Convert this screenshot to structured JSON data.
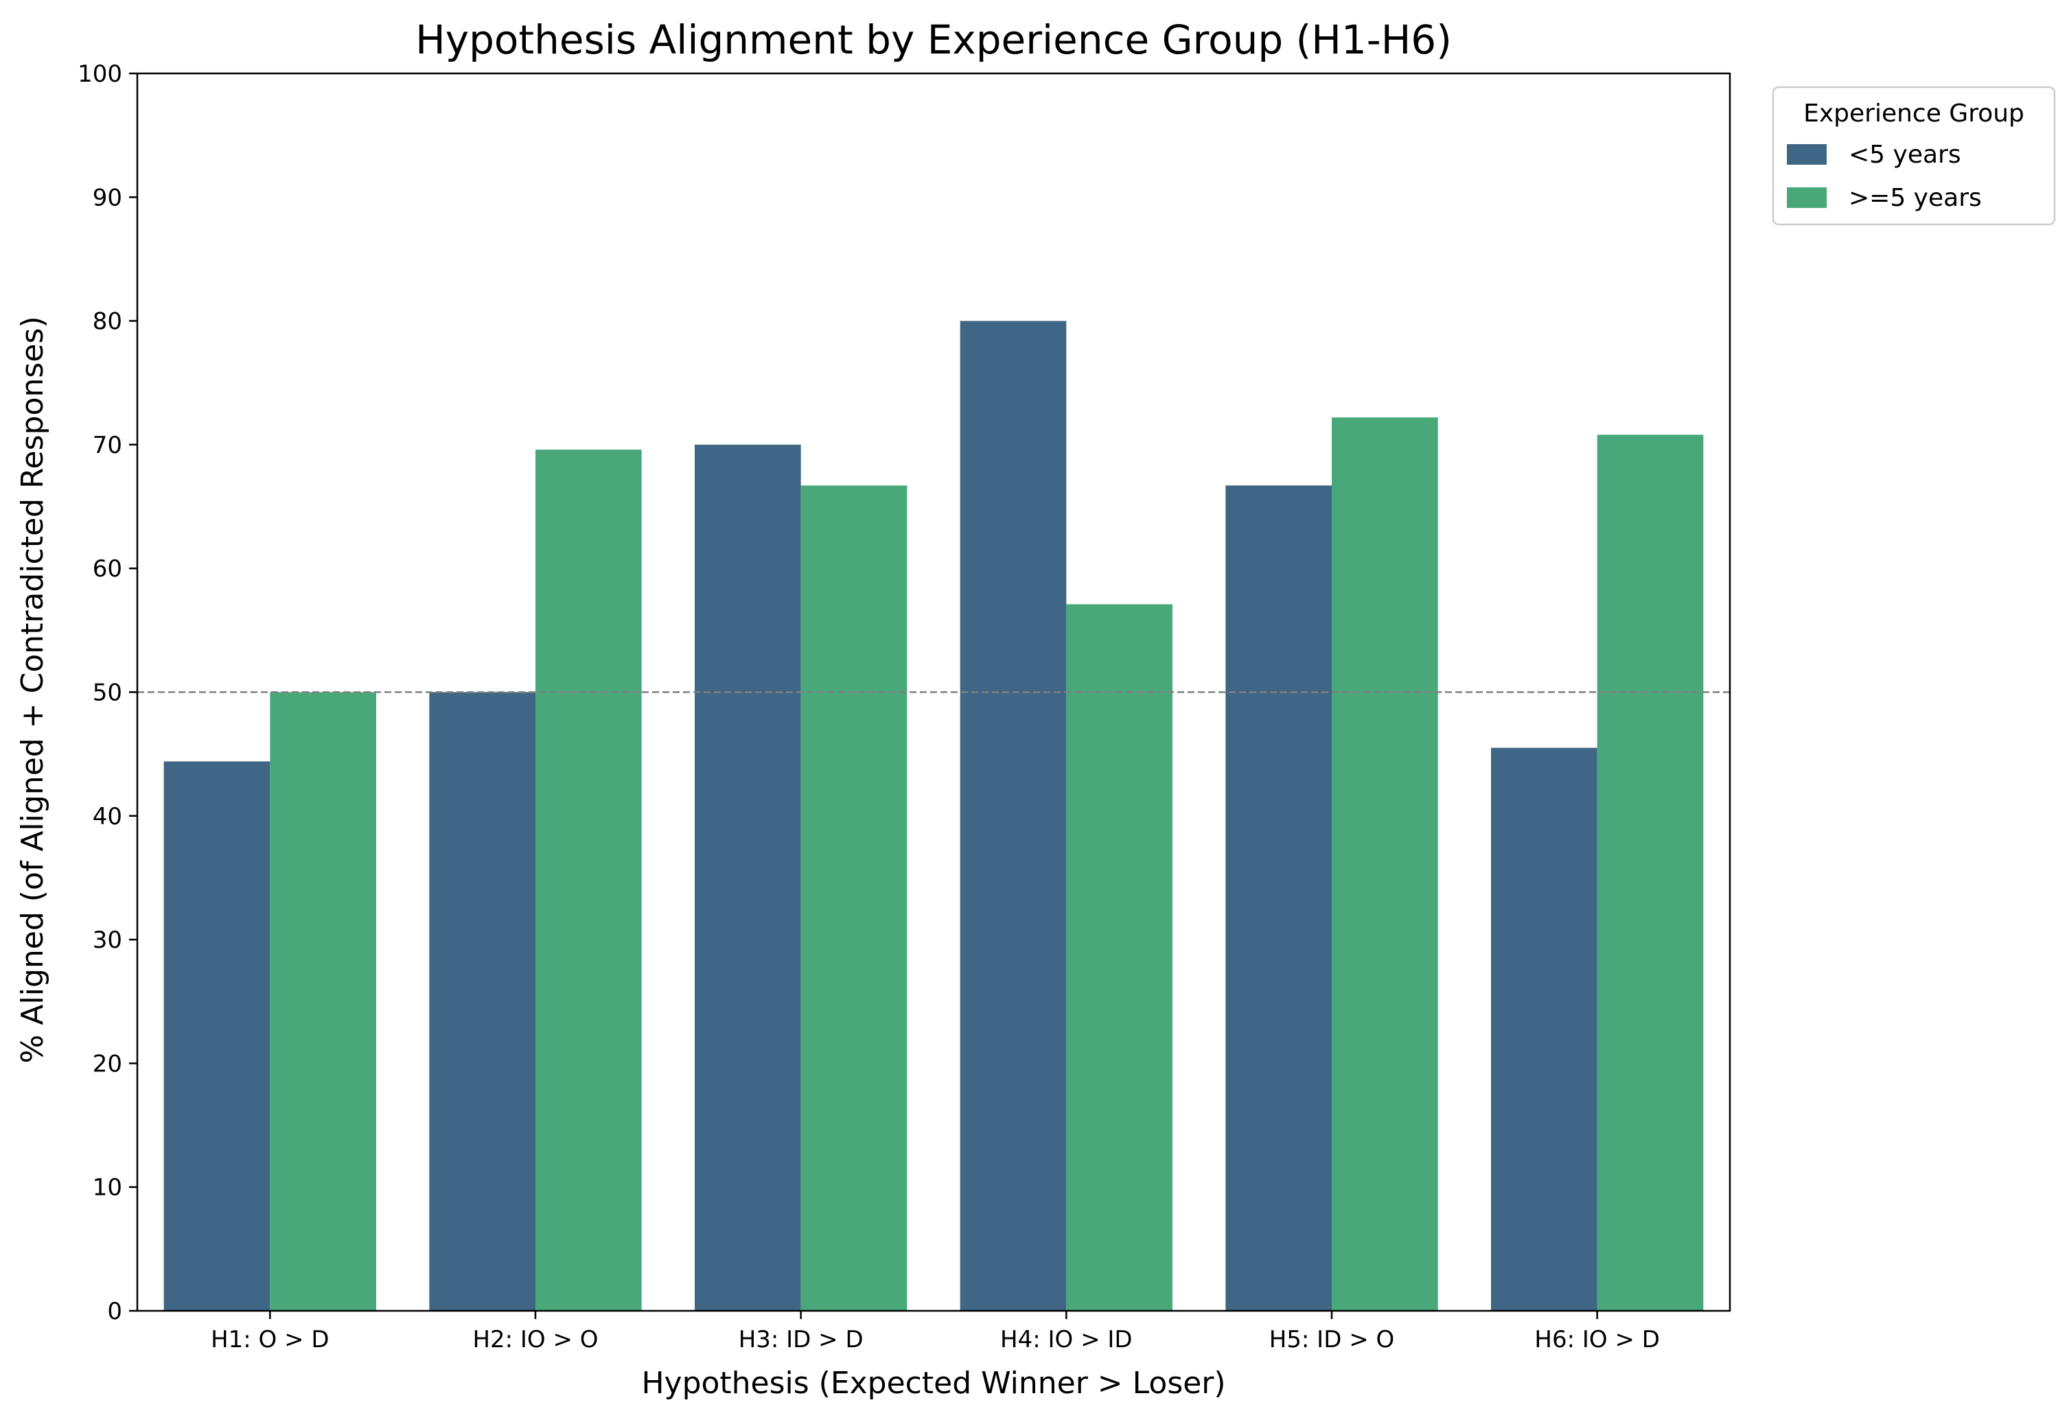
{
  "chart_data": {
    "type": "bar",
    "title": "Hypothesis Alignment by Experience Group (H1-H6)",
    "xlabel": "Hypothesis (Expected Winner > Loser)",
    "ylabel": "% Aligned (of Aligned + Contradicted Responses)",
    "categories": [
      "H1: O > D",
      "H2: IO > O",
      "H3: ID > D",
      "H4: IO > ID",
      "H5: ID > O",
      "H6: IO > D"
    ],
    "series": [
      {
        "name": "<5 years",
        "color": "#3f6685",
        "values": [
          44.4,
          50.0,
          70.0,
          80.0,
          66.7,
          45.5
        ]
      },
      {
        "name": ">=5 years",
        "color": "#48a879",
        "values": [
          50.0,
          69.6,
          66.7,
          57.1,
          72.2,
          70.8
        ]
      }
    ],
    "ylim": [
      0,
      100
    ],
    "yticks": [
      0,
      10,
      20,
      30,
      40,
      50,
      60,
      70,
      80,
      90,
      100
    ],
    "reference_line": {
      "y": 50,
      "style": "dashed",
      "color": "#808080"
    },
    "grid": false,
    "legend": {
      "title": "Experience Group",
      "placement": "outside top-right"
    }
  }
}
